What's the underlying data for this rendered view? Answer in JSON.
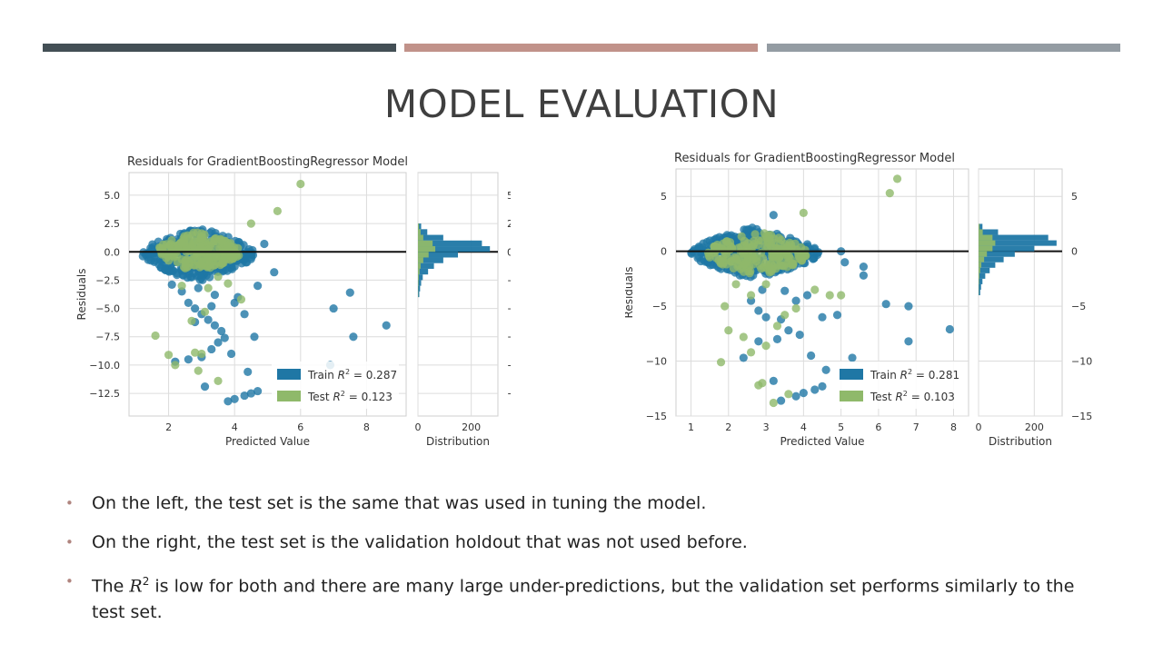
{
  "header": {
    "bars": [
      {
        "color": "#434f55"
      },
      {
        "color": "#c1928a"
      },
      {
        "color": "#949ca3"
      }
    ],
    "title": "MODEL EVALUATION"
  },
  "chart_data": [
    {
      "type": "scatter",
      "title": "Residuals for GradientBoostingRegressor Model",
      "xlabel": "Predicted Value",
      "ylabel": "Residuals",
      "xlim": [
        0.8,
        9.2
      ],
      "ylim": [
        -14.5,
        7.0
      ],
      "xticks": [
        2,
        4,
        6,
        8
      ],
      "yticks": [
        5.0,
        2.5,
        0.0,
        -2.5,
        -5.0,
        -7.5,
        -10.0,
        -12.5
      ],
      "ytick_labels": [
        "5.0",
        "2.5",
        "0.0",
        "−2.5",
        "−5.0",
        "−7.5",
        "−10.0",
        "−12.5"
      ],
      "grid": true,
      "legend_position": "bottom-right",
      "series": [
        {
          "name": "Train R² = 0.287",
          "legend_prefix": "Train ",
          "legend_value": " = 0.287",
          "color": "#1f77a5",
          "cloud": {
            "x_range": [
              1.2,
              4.6
            ],
            "y_range": [
              -2.6,
              2.2
            ],
            "count": 320
          },
          "points": [
            [
              2.6,
              -4.5
            ],
            [
              2.8,
              -5.0
            ],
            [
              3.0,
              -5.5
            ],
            [
              3.2,
              -6.0
            ],
            [
              3.4,
              -6.5
            ],
            [
              3.6,
              -7.0
            ],
            [
              3.7,
              -7.6
            ],
            [
              3.5,
              -8.0
            ],
            [
              3.3,
              -8.6
            ],
            [
              3.0,
              -9.3
            ],
            [
              2.2,
              -9.7
            ],
            [
              2.6,
              -9.5
            ],
            [
              3.1,
              -11.9
            ],
            [
              3.8,
              -13.2
            ],
            [
              4.0,
              -13.0
            ],
            [
              4.3,
              -12.7
            ],
            [
              4.5,
              -12.5
            ],
            [
              4.7,
              -12.3
            ],
            [
              4.4,
              -10.6
            ],
            [
              4.6,
              -7.5
            ],
            [
              4.3,
              -5.5
            ],
            [
              4.7,
              -3.0
            ],
            [
              5.2,
              -1.8
            ],
            [
              4.9,
              0.7
            ],
            [
              4.0,
              -4.5
            ],
            [
              2.4,
              -3.5
            ],
            [
              2.9,
              -3.2
            ],
            [
              3.4,
              -3.8
            ],
            [
              4.1,
              -4.0
            ],
            [
              3.9,
              -9.0
            ],
            [
              6.9,
              -10.0
            ],
            [
              7.0,
              -5.0
            ],
            [
              7.5,
              -3.6
            ],
            [
              7.6,
              -7.5
            ],
            [
              8.6,
              -6.5
            ],
            [
              2.8,
              -6.2
            ],
            [
              3.3,
              -4.8
            ],
            [
              2.1,
              -2.9
            ]
          ]
        },
        {
          "name": "Test R² = 0.123",
          "legend_prefix": "Test ",
          "legend_value": " = 0.123",
          "color": "#8fb96a",
          "cloud": {
            "x_range": [
              1.6,
              4.2
            ],
            "y_range": [
              -1.8,
              1.8
            ],
            "count": 200
          },
          "points": [
            [
              6.0,
              6.0
            ],
            [
              5.3,
              3.6
            ],
            [
              4.5,
              2.5
            ],
            [
              1.6,
              -7.4
            ],
            [
              2.0,
              -9.1
            ],
            [
              2.2,
              -10.0
            ],
            [
              2.8,
              -8.9
            ],
            [
              2.9,
              -10.5
            ],
            [
              3.0,
              -9.0
            ],
            [
              3.5,
              -11.4
            ],
            [
              4.2,
              -4.2
            ],
            [
              2.7,
              -6.1
            ],
            [
              3.2,
              -3.2
            ],
            [
              3.5,
              -2.2
            ],
            [
              2.4,
              -3.0
            ],
            [
              3.8,
              -2.8
            ],
            [
              3.1,
              -5.3
            ]
          ]
        }
      ],
      "distribution": {
        "xlabel": "Distribution",
        "xticks": [
          0,
          200
        ],
        "xlim": [
          0,
          300
        ],
        "bins": [
          {
            "y": 2.0,
            "train": 12,
            "test": 4
          },
          {
            "y": 1.5,
            "train": 35,
            "test": 10
          },
          {
            "y": 1.0,
            "train": 95,
            "test": 20
          },
          {
            "y": 0.5,
            "train": 240,
            "test": 55
          },
          {
            "y": 0.0,
            "train": 270,
            "test": 65
          },
          {
            "y": -0.5,
            "train": 150,
            "test": 40
          },
          {
            "y": -1.0,
            "train": 95,
            "test": 20
          },
          {
            "y": -1.5,
            "train": 60,
            "test": 10
          },
          {
            "y": -2.0,
            "train": 38,
            "test": 6
          },
          {
            "y": -2.5,
            "train": 18,
            "test": 3
          },
          {
            "y": -3.0,
            "train": 12,
            "test": 2
          },
          {
            "y": -3.5,
            "train": 8,
            "test": 1
          },
          {
            "y": -4.0,
            "train": 5,
            "test": 1
          }
        ]
      }
    },
    {
      "type": "scatter",
      "title": "Residuals for GradientBoostingRegressor Model",
      "xlabel": "Predicted Value",
      "ylabel": "Residuals",
      "xlim": [
        0.6,
        8.4
      ],
      "ylim": [
        -15.0,
        7.5
      ],
      "xticks": [
        1,
        2,
        3,
        4,
        5,
        6,
        7,
        8
      ],
      "yticks": [
        5,
        0,
        -5,
        -10,
        -15
      ],
      "ytick_labels": [
        "5",
        "0",
        "−5",
        "−10",
        "−15"
      ],
      "grid": true,
      "legend_position": "bottom-right",
      "series": [
        {
          "name": "Train R² = 0.281",
          "legend_prefix": "Train ",
          "legend_value": " = 0.281",
          "color": "#1f77a5",
          "cloud": {
            "x_range": [
              1.0,
              4.4
            ],
            "y_range": [
              -2.5,
              2.2
            ],
            "count": 320
          },
          "points": [
            [
              2.6,
              -4.5
            ],
            [
              2.8,
              -5.4
            ],
            [
              3.0,
              -6.0
            ],
            [
              3.4,
              -6.2
            ],
            [
              3.6,
              -7.2
            ],
            [
              3.9,
              -7.6
            ],
            [
              3.3,
              -8.0
            ],
            [
              2.8,
              -8.2
            ],
            [
              2.4,
              -9.7
            ],
            [
              3.2,
              -11.8
            ],
            [
              3.4,
              -13.6
            ],
            [
              3.8,
              -13.2
            ],
            [
              4.0,
              -12.9
            ],
            [
              4.3,
              -12.6
            ],
            [
              4.5,
              -12.3
            ],
            [
              4.6,
              -10.8
            ],
            [
              4.2,
              -9.5
            ],
            [
              4.5,
              -6.0
            ],
            [
              4.9,
              -5.8
            ],
            [
              5.0,
              0.0
            ],
            [
              5.1,
              -1.0
            ],
            [
              5.6,
              -1.4
            ],
            [
              5.6,
              -2.2
            ],
            [
              5.3,
              -9.7
            ],
            [
              6.2,
              -4.8
            ],
            [
              6.8,
              -5.0
            ],
            [
              6.8,
              -8.2
            ],
            [
              7.9,
              -7.1
            ],
            [
              3.2,
              3.3
            ],
            [
              3.8,
              -4.5
            ],
            [
              2.9,
              -3.5
            ],
            [
              3.5,
              -3.6
            ],
            [
              4.1,
              -4.0
            ]
          ]
        },
        {
          "name": "Test R² = 0.103",
          "legend_prefix": "Test ",
          "legend_value": " = 0.103",
          "color": "#8fb96a",
          "cloud": {
            "x_range": [
              1.4,
              4.2
            ],
            "y_range": [
              -2.2,
              1.8
            ],
            "count": 200
          },
          "points": [
            [
              6.5,
              6.6
            ],
            [
              6.3,
              5.3
            ],
            [
              4.0,
              3.5
            ],
            [
              5.0,
              -4.0
            ],
            [
              4.7,
              -4.0
            ],
            [
              3.0,
              -3.0
            ],
            [
              1.9,
              -5.0
            ],
            [
              2.0,
              -7.2
            ],
            [
              2.4,
              -7.8
            ],
            [
              1.8,
              -10.1
            ],
            [
              3.0,
              -8.6
            ],
            [
              3.3,
              -6.8
            ],
            [
              3.5,
              -5.8
            ],
            [
              3.8,
              -5.2
            ],
            [
              2.8,
              -12.2
            ],
            [
              2.9,
              -12.0
            ],
            [
              3.2,
              -13.8
            ],
            [
              3.6,
              -13.0
            ],
            [
              2.6,
              -4.0
            ],
            [
              2.2,
              -3.0
            ],
            [
              4.3,
              -3.5
            ],
            [
              2.6,
              -9.2
            ]
          ]
        }
      ],
      "distribution": {
        "xlabel": "Distribution",
        "xticks": [
          0,
          200
        ],
        "xlim": [
          0,
          300
        ],
        "bins": [
          {
            "y": 2.0,
            "train": 14,
            "test": 4
          },
          {
            "y": 1.5,
            "train": 70,
            "test": 15
          },
          {
            "y": 1.0,
            "train": 250,
            "test": 50
          },
          {
            "y": 0.5,
            "train": 280,
            "test": 60
          },
          {
            "y": 0.0,
            "train": 200,
            "test": 50
          },
          {
            "y": -0.5,
            "train": 130,
            "test": 30
          },
          {
            "y": -1.0,
            "train": 90,
            "test": 20
          },
          {
            "y": -1.5,
            "train": 60,
            "test": 10
          },
          {
            "y": -2.0,
            "train": 40,
            "test": 6
          },
          {
            "y": -2.5,
            "train": 24,
            "test": 3
          },
          {
            "y": -3.0,
            "train": 14,
            "test": 2
          },
          {
            "y": -3.5,
            "train": 9,
            "test": 1
          },
          {
            "y": -4.0,
            "train": 6,
            "test": 1
          }
        ]
      }
    }
  ],
  "bullets": [
    {
      "text": "On the left, the test set is the same that was used in tuning the model."
    },
    {
      "text": "On the right, the test set is the validation holdout that was not used before."
    },
    {
      "pre": "The ",
      "sym": "R",
      "sup": "2",
      "post": " is low for both and there are many large under-predictions, but the validation set performs similarly to the test set."
    }
  ]
}
